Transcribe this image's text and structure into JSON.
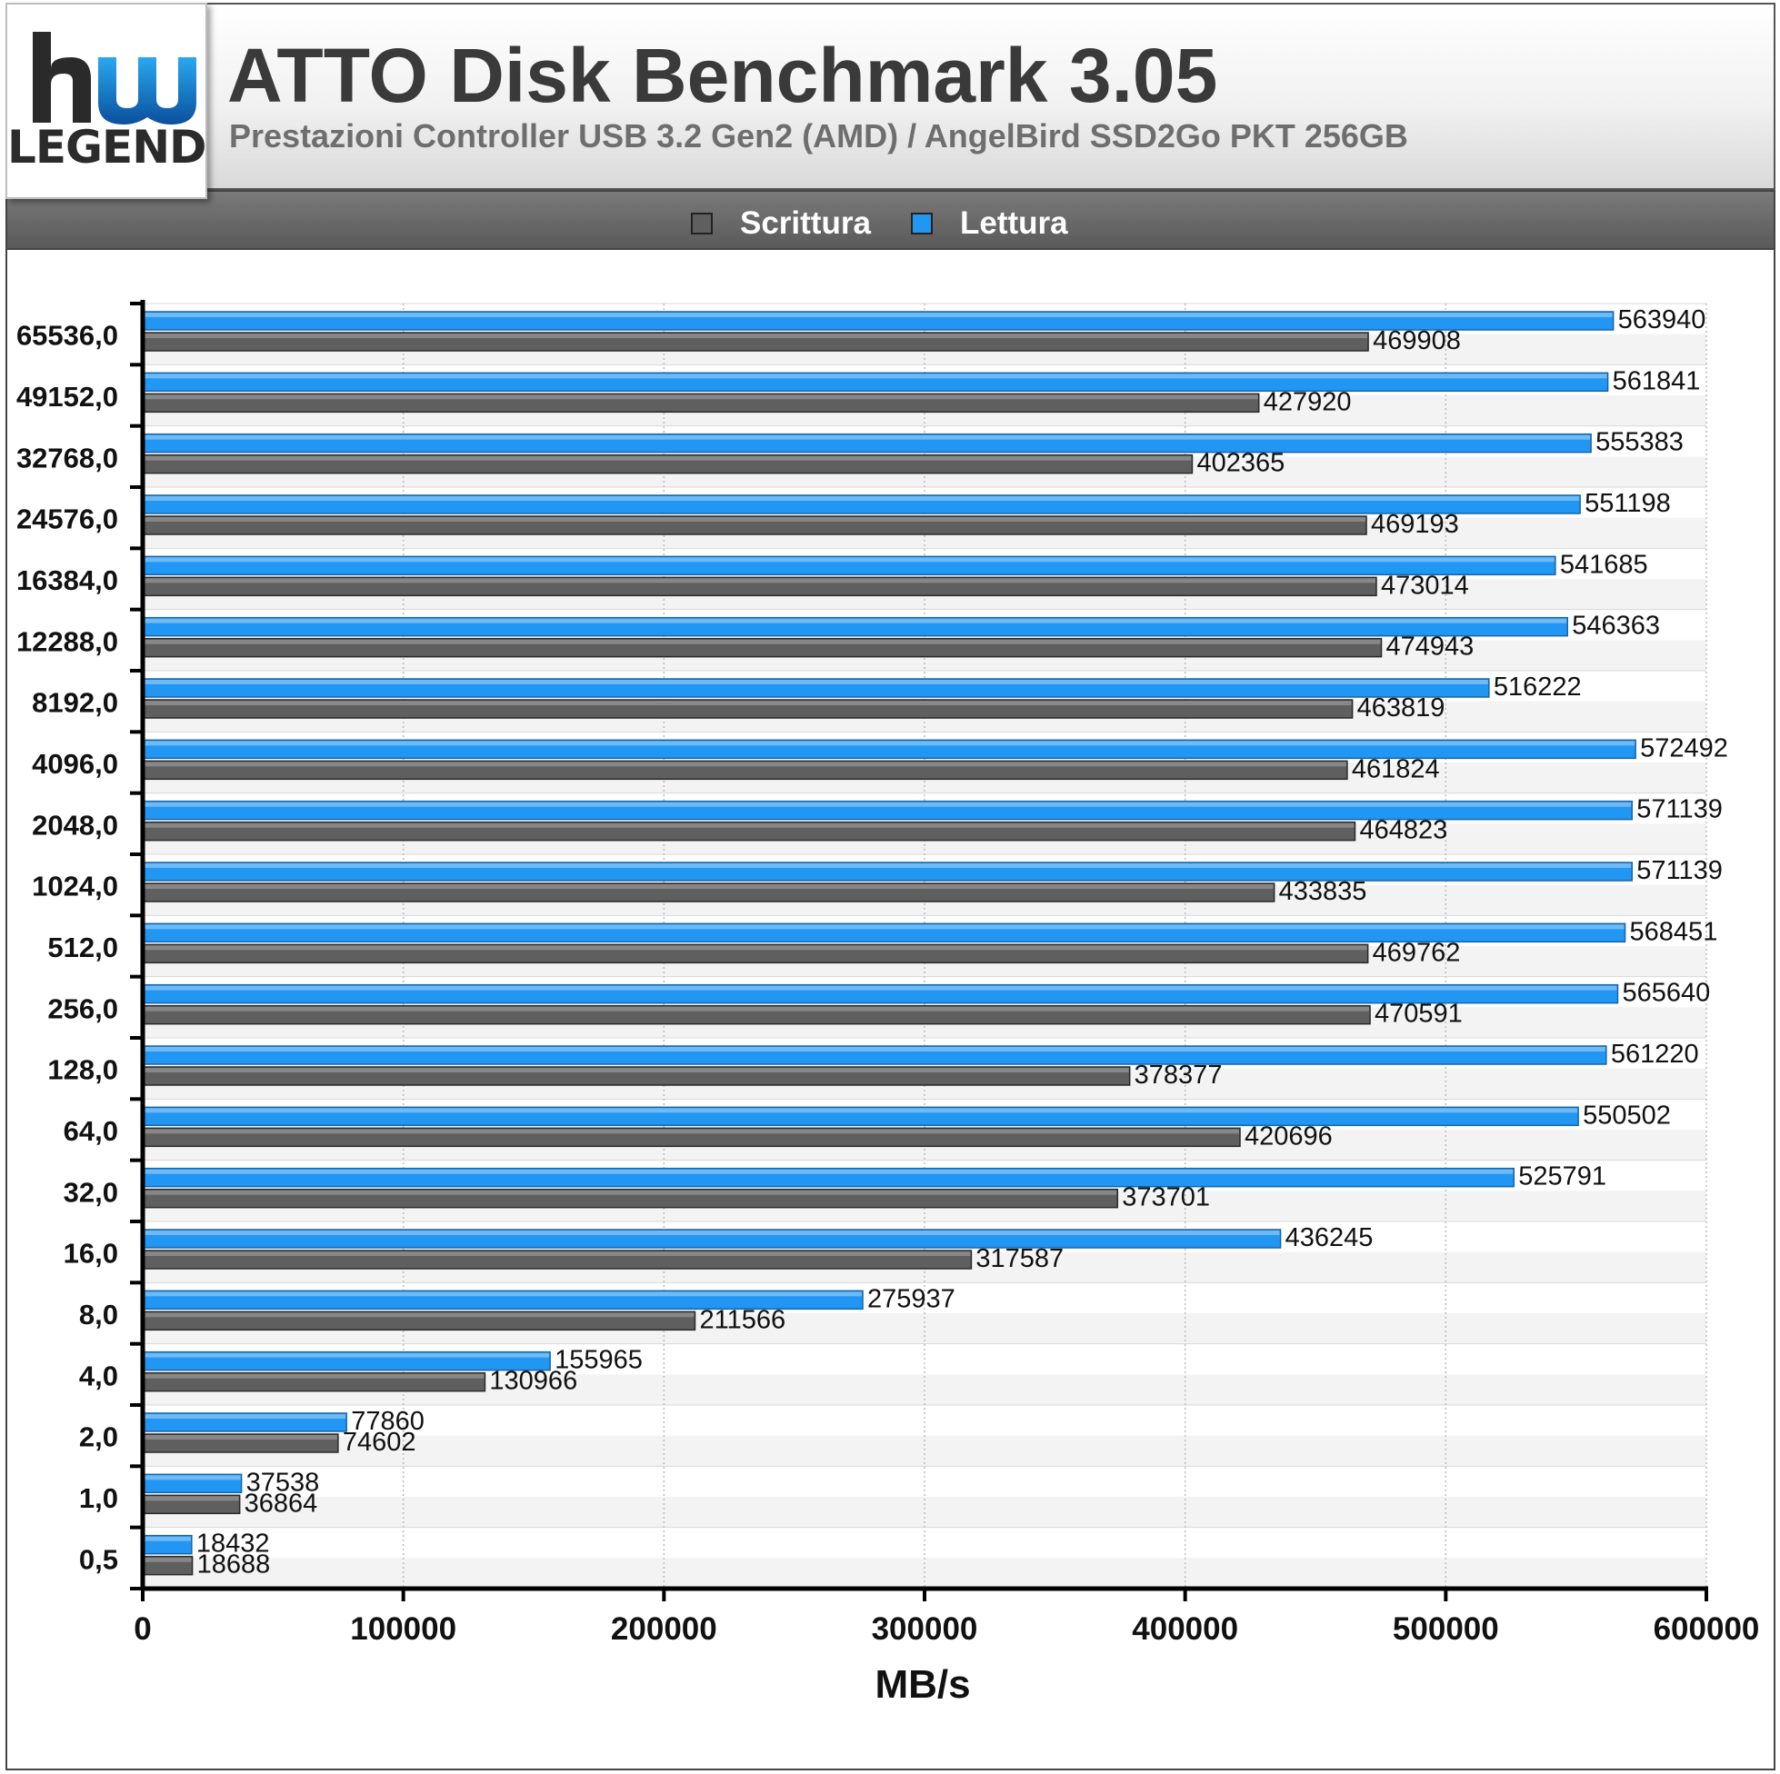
{
  "header": {
    "title": "ATTO Disk Benchmark 3.05",
    "subtitle": "Prestazioni Controller USB 3.2 Gen2 (AMD) / AngelBird SSD2Go PKT 256GB",
    "logo_text": "LEGEND"
  },
  "colors": {
    "scrittura": "#5f5f5f",
    "lettura": "#2196f3",
    "header_bg": "#e6e6e6",
    "legend_bg": "#666666"
  },
  "chart_data": {
    "type": "bar",
    "orientation": "horizontal",
    "title": "ATTO Disk Benchmark 3.05",
    "subtitle": "Prestazioni Controller USB 3.2 Gen2 (AMD) / AngelBird SSD2Go PKT 256GB",
    "xlabel": "MB/s",
    "ylabel": "",
    "xlim": [
      0,
      600000
    ],
    "xticks": [
      "0",
      "100000",
      "200000",
      "300000",
      "400000",
      "500000",
      "600000"
    ],
    "grid": true,
    "legend_position": "top",
    "categories": [
      "65536,0",
      "49152,0",
      "32768,0",
      "24576,0",
      "16384,0",
      "12288,0",
      "8192,0",
      "4096,0",
      "2048,0",
      "1024,0",
      "512,0",
      "256,0",
      "128,0",
      "64,0",
      "32,0",
      "16,0",
      "8,0",
      "4,0",
      "2,0",
      "1,0",
      "0,5"
    ],
    "series": [
      {
        "name": "Scrittura",
        "color": "#5f5f5f",
        "values": [
          469908,
          427920,
          402365,
          469193,
          473014,
          474943,
          463819,
          461824,
          464823,
          433835,
          469762,
          470591,
          378377,
          420696,
          373701,
          317587,
          211566,
          130966,
          74602,
          36864,
          18688
        ]
      },
      {
        "name": "Lettura",
        "color": "#2196f3",
        "values": [
          563940,
          561841,
          555383,
          551198,
          541685,
          546363,
          516222,
          572492,
          571139,
          571139,
          568451,
          565640,
          561220,
          550502,
          525791,
          436245,
          275937,
          155965,
          77860,
          37538,
          18432
        ]
      }
    ]
  }
}
